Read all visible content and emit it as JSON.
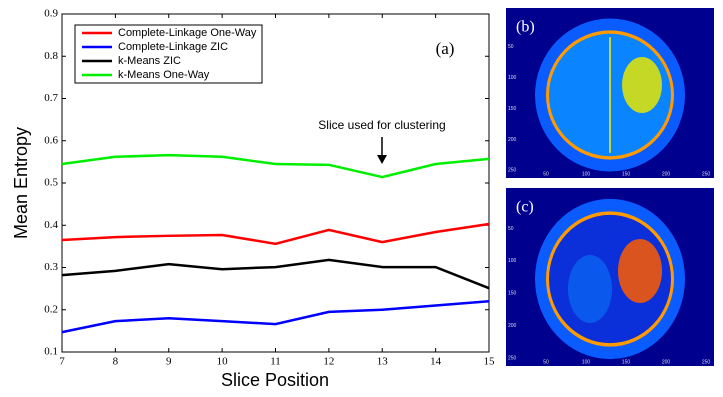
{
  "chart_data": {
    "type": "line",
    "xlabel": "Slice Position",
    "ylabel": "Mean Entropy",
    "annotations": [
      "(a)",
      "Slice used for clustering"
    ],
    "x": [
      7,
      8,
      9,
      10,
      11,
      12,
      13,
      14,
      15
    ],
    "series": [
      {
        "name": "Complete-Linkage One-Way",
        "color": "#ff0000",
        "values": [
          0.365,
          0.372,
          0.375,
          0.377,
          0.356,
          0.389,
          0.36,
          0.384,
          0.403
        ]
      },
      {
        "name": "Complete-Linkage ZIC",
        "color": "#0000ff",
        "values": [
          0.147,
          0.173,
          0.18,
          0.173,
          0.166,
          0.195,
          0.2,
          0.21,
          0.22
        ]
      },
      {
        "name": "k-Means ZIC",
        "color": "#000000",
        "values": [
          0.282,
          0.292,
          0.308,
          0.296,
          0.301,
          0.318,
          0.301,
          0.301,
          0.251
        ]
      },
      {
        "name": "k-Means One-Way",
        "color": "#00ee00",
        "values": [
          0.545,
          0.562,
          0.566,
          0.562,
          0.545,
          0.543,
          0.514,
          0.545,
          0.557
        ]
      }
    ],
    "xlim": [
      7,
      15
    ],
    "xticks": [
      7,
      8,
      9,
      10,
      11,
      12,
      13,
      14,
      15
    ],
    "ylim": [
      0.1,
      0.9
    ],
    "yticks": [
      0.1,
      0.2,
      0.3,
      0.4,
      0.5,
      0.6,
      0.7,
      0.8,
      0.9
    ],
    "legend": "upper left"
  },
  "panels": [
    {
      "label": "(b)",
      "xticks": [
        50,
        100,
        150,
        200,
        250
      ],
      "yticks": [
        50,
        100,
        150,
        200,
        250
      ]
    },
    {
      "label": "(c)",
      "xticks": [
        50,
        100,
        150,
        200,
        250
      ],
      "yticks": [
        50,
        100,
        150,
        200,
        250
      ]
    }
  ]
}
